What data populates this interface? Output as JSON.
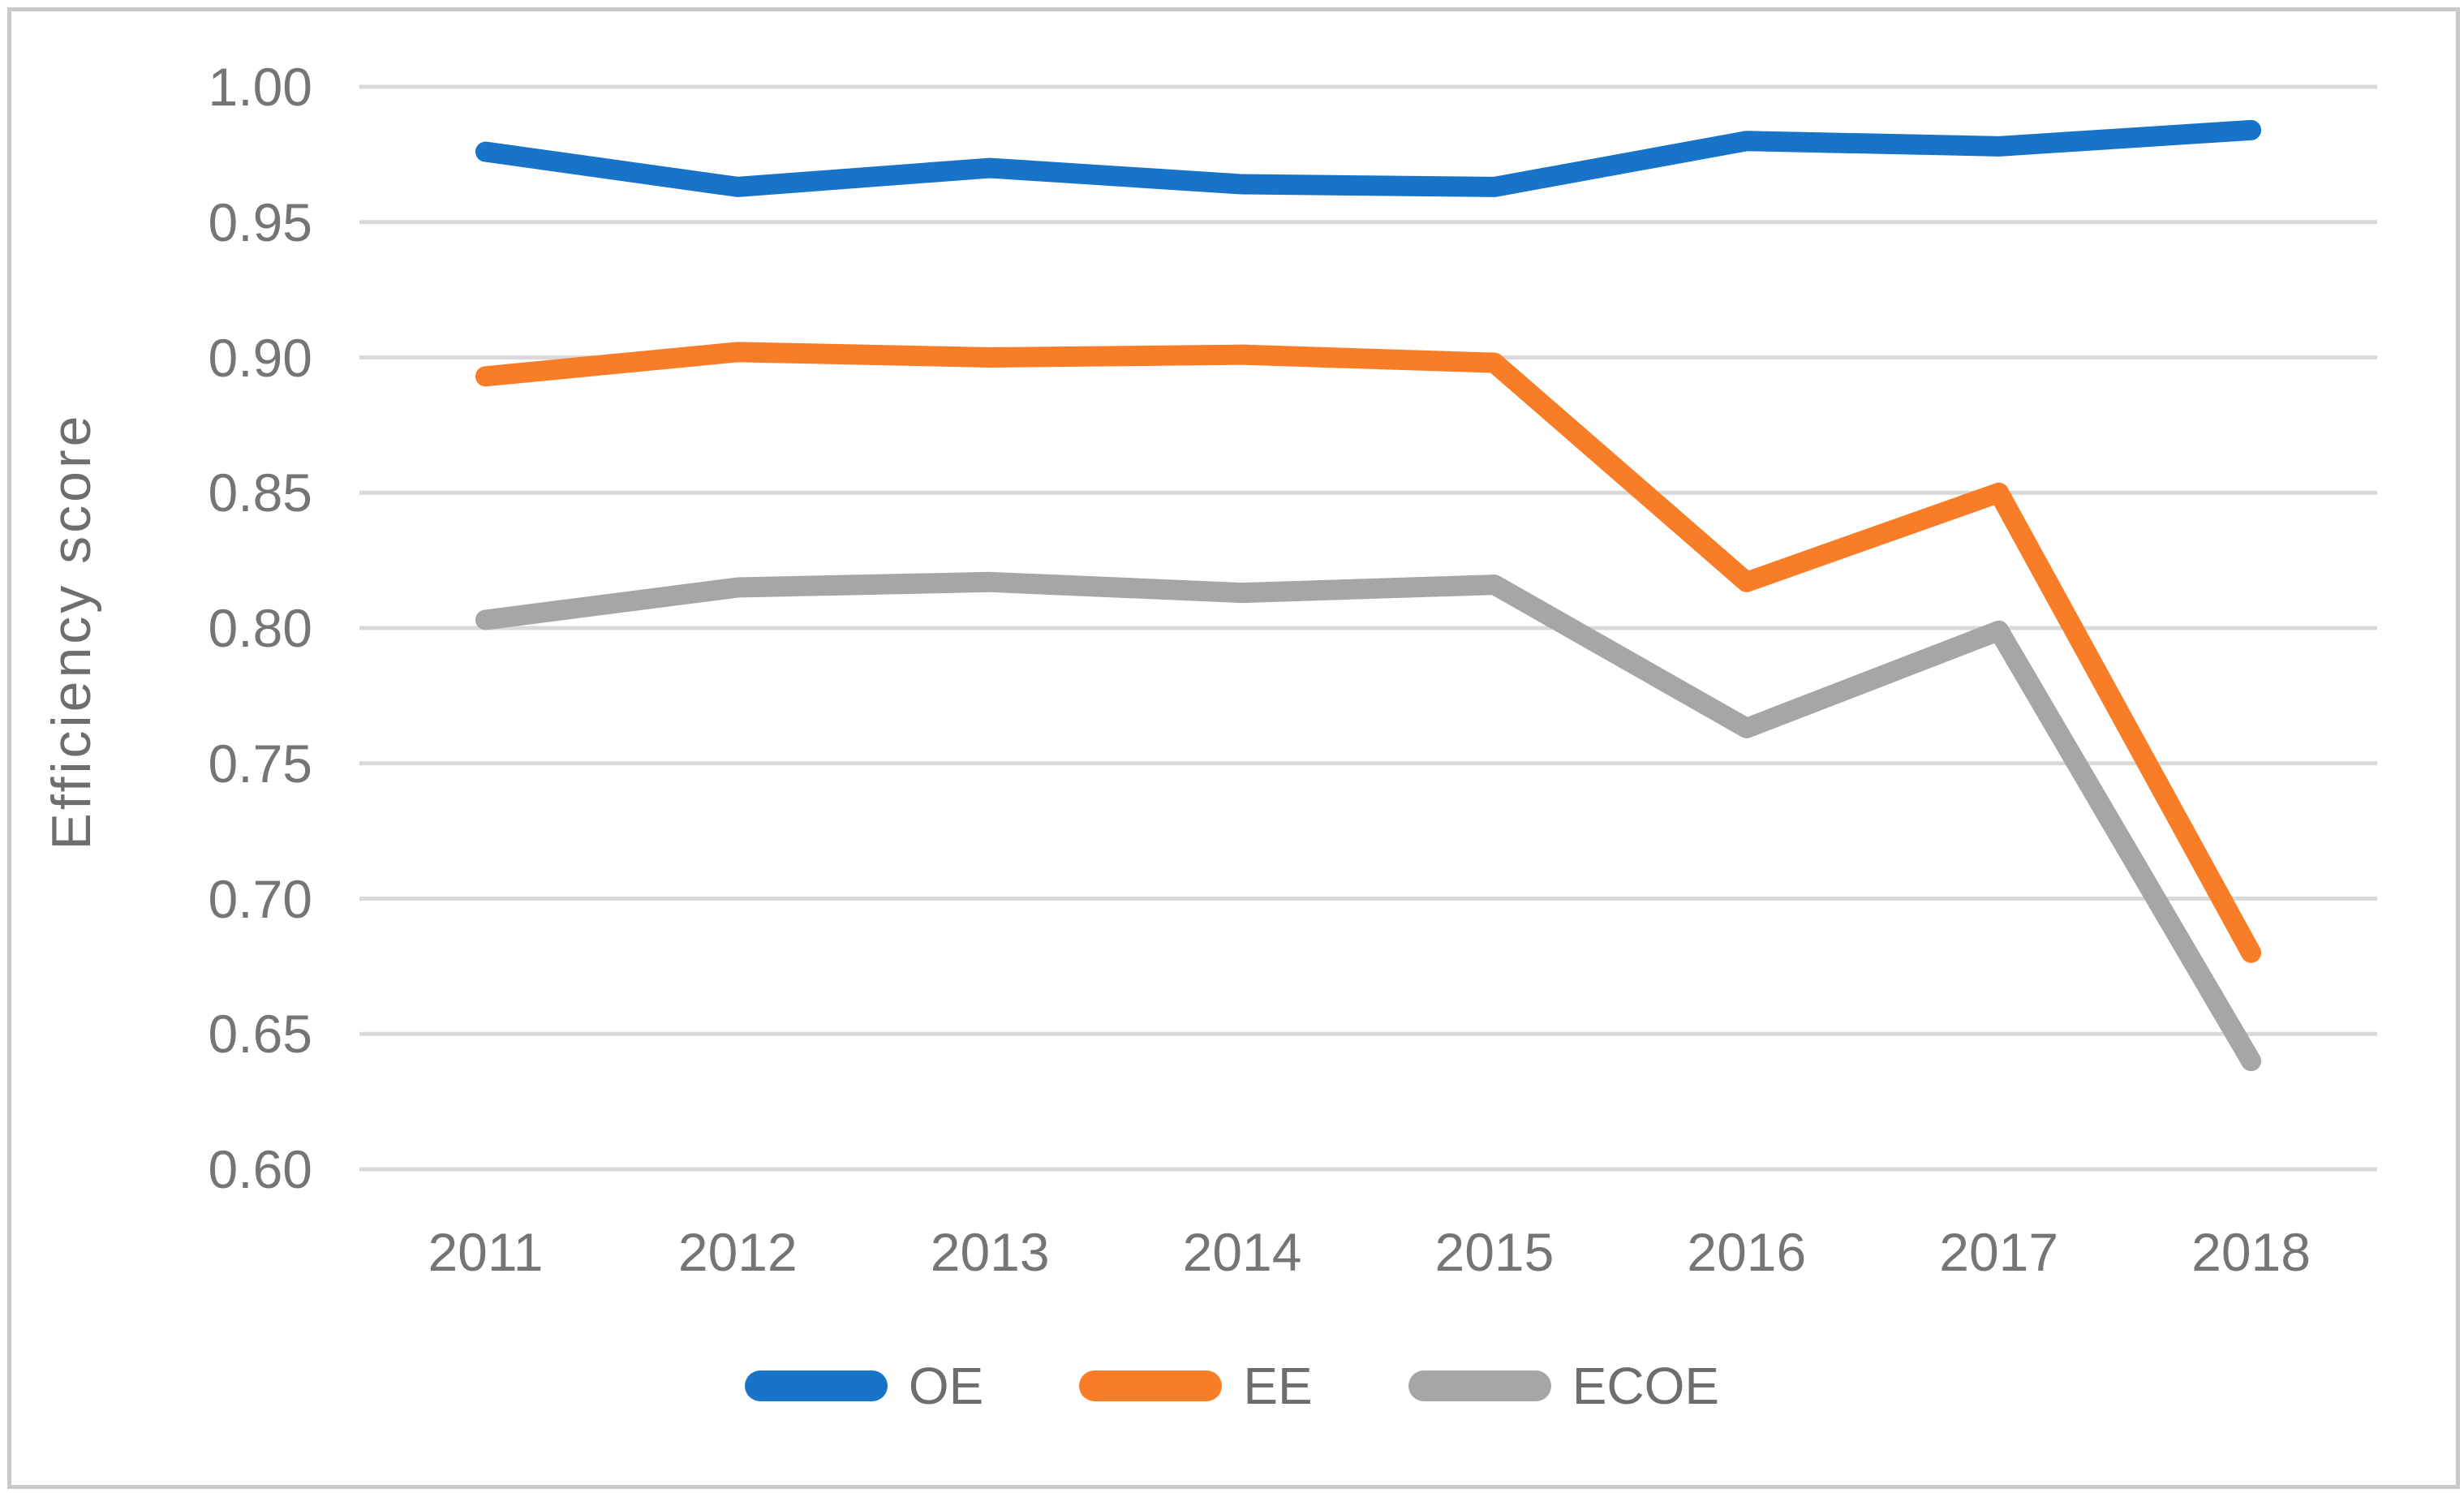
{
  "figure": {
    "background_color": "#ffffff",
    "border_color": "#c9c9c9"
  },
  "chart_data": {
    "type": "line",
    "title": "",
    "xlabel": "",
    "ylabel": "Efficiency score",
    "x": [
      "2011",
      "2012",
      "2013",
      "2014",
      "2015",
      "2016",
      "2017",
      "2018"
    ],
    "series": [
      {
        "name": "OE",
        "color": "#1774c8",
        "values": [
          0.976,
          0.963,
          0.97,
          0.964,
          0.963,
          0.98,
          0.978,
          0.984
        ]
      },
      {
        "name": "EE",
        "color": "#f97d26",
        "values": [
          0.893,
          0.902,
          0.9,
          0.901,
          0.898,
          0.817,
          0.85,
          0.68
        ]
      },
      {
        "name": "ECOE",
        "color": "#a6a6a6",
        "values": [
          0.803,
          0.815,
          0.817,
          0.813,
          0.816,
          0.763,
          0.799,
          0.64
        ]
      }
    ],
    "ylim": [
      0.6,
      1.0
    ],
    "ytick_step": 0.05,
    "ytick_labels": [
      "1.00",
      "0.95",
      "0.90",
      "0.85",
      "0.80",
      "0.75",
      "0.70",
      "0.65",
      "0.60"
    ],
    "grid": true,
    "gridline_color": "#d9d9d9",
    "tick_label_color": "#757575",
    "legend_position": "bottom",
    "legend_labels": [
      "OE",
      "EE",
      "ECOE"
    ],
    "line_width": 25
  }
}
